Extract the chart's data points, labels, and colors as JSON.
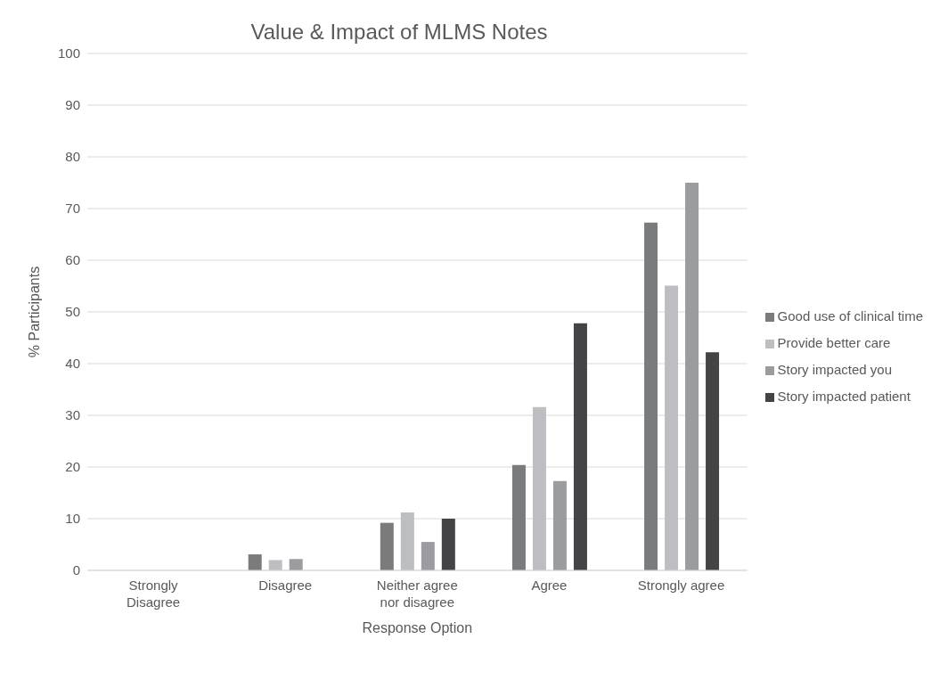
{
  "chart_data": {
    "type": "bar",
    "title": "Value & Impact of MLMS Notes",
    "xlabel": "Response Option",
    "ylabel": "% Participants",
    "categories": [
      "Strongly Disagree",
      "Disagree",
      "Neither agree nor disagree",
      "Agree",
      "Strongly agree"
    ],
    "series": [
      {
        "name": "Good use of clinical time",
        "color": "#7a7b7d",
        "values": [
          0,
          3.1,
          9.2,
          20.4,
          67.3
        ]
      },
      {
        "name": "Provide better care",
        "color": "#bdbec1",
        "values": [
          0,
          2.0,
          11.2,
          31.6,
          55.1
        ]
      },
      {
        "name": "Story impacted you",
        "color": "#9b9c9f",
        "values": [
          0,
          2.2,
          5.5,
          17.3,
          75.0
        ]
      },
      {
        "name": "Story impacted patient",
        "color": "#444446",
        "values": [
          0,
          0,
          10.0,
          47.8,
          42.2
        ]
      }
    ],
    "ylim": [
      0,
      100
    ],
    "yticks": [
      0,
      10,
      20,
      30,
      40,
      50,
      60,
      70,
      80,
      90,
      100
    ],
    "grid": "y",
    "legend": "right"
  }
}
